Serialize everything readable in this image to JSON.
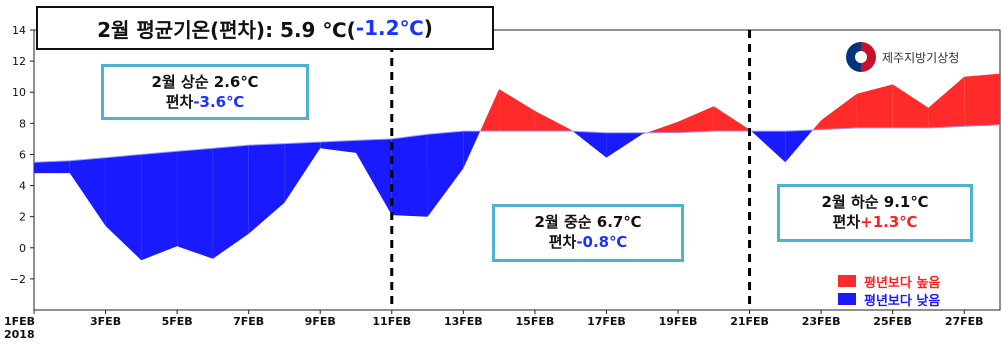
{
  "title": {
    "main": "2월 평균기온(편차): 5.9 ℃(",
    "deviation": "-1.2℃",
    "close": ")"
  },
  "annotations": [
    {
      "line1": "2월 상순 2.6℃",
      "line2_prefix": "편차",
      "line2_value": "-3.6℃",
      "sign": "neg"
    },
    {
      "line1": "2월 중순 6.7℃",
      "line2_prefix": "편차",
      "line2_value": "-0.8℃",
      "sign": "neg"
    },
    {
      "line1": "2월 하순 9.1℃",
      "line2_prefix": "편차",
      "line2_value": "+1.3℃",
      "sign": "pos"
    }
  ],
  "logo": {
    "text": "제주지방기상청"
  },
  "legend": [
    {
      "label": "평년보다 높음",
      "color": "#ff2a2a"
    },
    {
      "label": "평년보다 낮음",
      "color": "#1a1aff"
    }
  ],
  "chart_data": {
    "type": "area",
    "ylim": [
      -4,
      14
    ],
    "yticks": [
      "−2",
      "0",
      "2",
      "4",
      "6",
      "8",
      "10",
      "12",
      "14"
    ],
    "yticks_values": [
      -2,
      0,
      2,
      4,
      6,
      8,
      10,
      12,
      14
    ],
    "xlim": [
      "1FEB",
      "28FEB"
    ],
    "xticks": [
      "1FEB",
      "3FEB",
      "5FEB",
      "7FEB",
      "9FEB",
      "11FEB",
      "13FEB",
      "15FEB",
      "17FEB",
      "19FEB",
      "21FEB",
      "23FEB",
      "25FEB",
      "27FEB"
    ],
    "xtick_days": [
      1,
      3,
      5,
      7,
      9,
      11,
      13,
      15,
      17,
      19,
      21,
      23,
      25,
      27
    ],
    "year_label": "2018",
    "dividers_days": [
      11,
      21
    ],
    "days": [
      1,
      2,
      3,
      4,
      5,
      6,
      7,
      8,
      9,
      10,
      11,
      12,
      13,
      14,
      15,
      16,
      17,
      18,
      19,
      20,
      21,
      22,
      23,
      24,
      25,
      26,
      27,
      28
    ],
    "series": [
      {
        "name": "평년",
        "values": [
          5.5,
          5.6,
          5.8,
          6.0,
          6.2,
          6.4,
          6.6,
          6.7,
          6.8,
          6.9,
          7.0,
          7.3,
          7.5,
          7.5,
          7.5,
          7.5,
          7.4,
          7.4,
          7.4,
          7.5,
          7.5,
          7.5,
          7.6,
          7.7,
          7.7,
          7.7,
          7.8,
          7.9
        ]
      },
      {
        "name": "2018",
        "values": [
          4.8,
          4.8,
          1.4,
          -0.8,
          0.1,
          -0.7,
          0.9,
          2.9,
          6.4,
          6.1,
          2.1,
          2.0,
          5.1,
          10.2,
          8.8,
          7.6,
          5.8,
          7.3,
          8.1,
          9.1,
          7.6,
          5.5,
          8.2,
          9.9,
          10.5,
          9.0,
          11.0,
          11.2
        ]
      }
    ]
  }
}
